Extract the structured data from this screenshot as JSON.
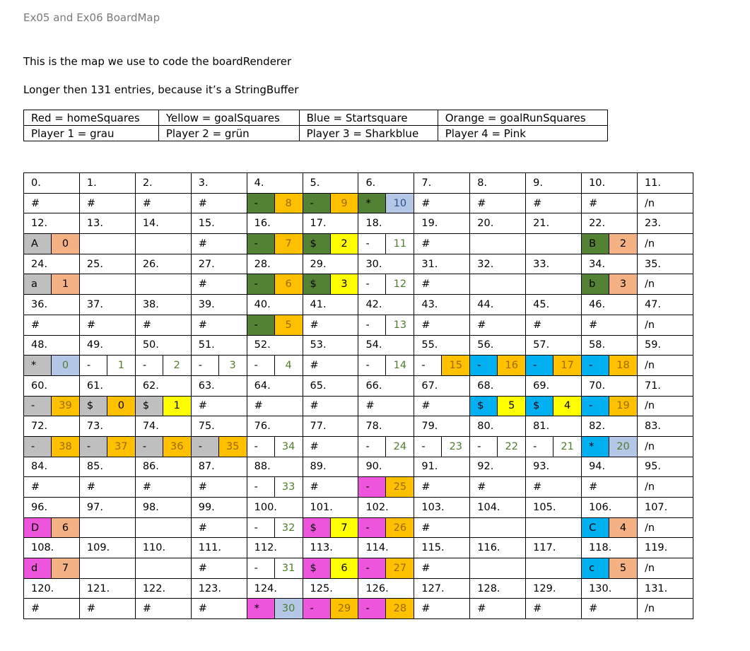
{
  "title": "Ex05 and Ex06 BoardMap",
  "intro": [
    "This is the map we use to code the boardRenderer",
    "Longer then 131 entries, because it’s a StringBuffer"
  ],
  "legend": [
    [
      "Red = homeSquares",
      "Yellow = goalSquares",
      "Blue = Startsquare",
      "Orange = goalRunSquares"
    ],
    [
      "Player 1 = grau",
      "Player 2 = grün",
      "Player 3 = Sharkblue",
      "Player 4 = Pink"
    ]
  ],
  "colors": {
    "dark_green": "#548235",
    "orange": "#ffc000",
    "yellow": "#ffff00",
    "light_blue": "#b4c7e7",
    "gray": "#bfbfbf",
    "salmon": "#f4b183",
    "sky_blue": "#00b0f0",
    "magenta": "#ee55dd"
  },
  "board": {
    "index_rows": [
      [
        "0.",
        "1.",
        "2.",
        "3.",
        "4.",
        "5.",
        "6.",
        "7.",
        "8.",
        "9.",
        "10.",
        "11."
      ],
      [
        "12.",
        "13.",
        "14.",
        "15.",
        "16.",
        "17.",
        "18.",
        "19.",
        "20.",
        "21.",
        "22.",
        "23."
      ],
      [
        "24.",
        "25.",
        "26.",
        "27.",
        "28.",
        "29.",
        "30.",
        "31.",
        "32.",
        "33.",
        "34.",
        "35."
      ],
      [
        "36.",
        "37.",
        "38.",
        "39.",
        "40.",
        "41.",
        "42.",
        "43.",
        "44.",
        "45.",
        "46.",
        "47."
      ],
      [
        "48.",
        "49.",
        "50.",
        "51.",
        "52.",
        "53.",
        "54.",
        "55.",
        "56.",
        "57.",
        "58.",
        "59."
      ],
      [
        "60.",
        "61.",
        "62.",
        "63.",
        "64.",
        "65.",
        "66.",
        "67.",
        "68.",
        "69.",
        "70.",
        "71."
      ],
      [
        "72.",
        "73.",
        "74.",
        "75.",
        "76.",
        "77.",
        "78.",
        "79.",
        "80.",
        "81.",
        "82.",
        "83."
      ],
      [
        "84.",
        "85.",
        "86.",
        "87.",
        "88.",
        "89.",
        "90.",
        "91.",
        "92.",
        "93.",
        "94.",
        "95."
      ],
      [
        "96.",
        "97.",
        "98.",
        "99.",
        "100.",
        "101.",
        "102.",
        "103.",
        "104.",
        "105.",
        "106.",
        "107."
      ],
      [
        "108.",
        "109.",
        "110.",
        "111.",
        "112.",
        "113.",
        "114.",
        "115.",
        "116.",
        "117.",
        "118.",
        "119."
      ],
      [
        "120.",
        "121.",
        "122.",
        "123.",
        "124.",
        "125.",
        "126.",
        "127.",
        "128.",
        "129.",
        "130.",
        "131."
      ]
    ],
    "content_rows": [
      [
        {
          "t": "#"
        },
        {
          "t": "#"
        },
        {
          "t": "#"
        },
        {
          "t": "#"
        },
        {
          "s": "-",
          "v": "8",
          "sb": "dark_green",
          "vb": "orange",
          "vc": "orange-t"
        },
        {
          "s": "-",
          "v": "9",
          "sb": "dark_green",
          "vb": "orange",
          "vc": "orange-t"
        },
        {
          "s": "*",
          "v": "10",
          "sb": "dark_green",
          "vb": "light_blue",
          "vc": "blue-t"
        },
        {
          "t": "#"
        },
        {
          "t": "#"
        },
        {
          "t": "#"
        },
        {
          "t": "#"
        },
        {
          "t": "/n"
        }
      ],
      [
        {
          "s": "A",
          "v": "0",
          "sb": "gray",
          "vb": "salmon"
        },
        {
          "t": ""
        },
        {
          "t": ""
        },
        {
          "t": "#"
        },
        {
          "s": "-",
          "v": "7",
          "sb": "dark_green",
          "vb": "orange",
          "vc": "orange-t"
        },
        {
          "s": "$",
          "v": "2",
          "sb": "dark_green",
          "vb": "yellow"
        },
        {
          "s": "-",
          "v": "11",
          "vc": "green-t"
        },
        {
          "t": "#"
        },
        {
          "t": ""
        },
        {
          "t": ""
        },
        {
          "s": "B",
          "v": "2",
          "sb": "dark_green",
          "vb": "salmon"
        },
        {
          "t": "/n"
        }
      ],
      [
        {
          "s": "a",
          "v": "1",
          "sb": "gray",
          "vb": "salmon"
        },
        {
          "t": ""
        },
        {
          "t": ""
        },
        {
          "t": "#"
        },
        {
          "s": "-",
          "v": "6",
          "sb": "dark_green",
          "vb": "orange",
          "vc": "orange-t"
        },
        {
          "s": "$",
          "v": "3",
          "sb": "dark_green",
          "vb": "yellow"
        },
        {
          "s": "-",
          "v": "12",
          "vc": "green-t"
        },
        {
          "t": "#"
        },
        {
          "t": ""
        },
        {
          "t": ""
        },
        {
          "s": "b",
          "v": "3",
          "sb": "dark_green",
          "vb": "salmon"
        },
        {
          "t": "/n"
        }
      ],
      [
        {
          "t": "#"
        },
        {
          "t": "#"
        },
        {
          "t": "#"
        },
        {
          "t": "#"
        },
        {
          "s": "-",
          "v": "5",
          "sb": "dark_green",
          "vb": "orange",
          "vc": "orange-t"
        },
        {
          "t": "#"
        },
        {
          "s": "-",
          "v": "13",
          "vc": "green-t"
        },
        {
          "t": "#"
        },
        {
          "t": "#"
        },
        {
          "t": "#"
        },
        {
          "t": "#"
        },
        {
          "t": "/n"
        }
      ],
      [
        {
          "s": "*",
          "v": "0",
          "sb": "gray",
          "vb": "light_blue",
          "vc": "green-t"
        },
        {
          "s": "-",
          "v": "1",
          "vc": "green-t"
        },
        {
          "s": "-",
          "v": "2",
          "vc": "green-t"
        },
        {
          "s": "-",
          "v": "3",
          "vc": "green-t"
        },
        {
          "s": "-",
          "v": "4",
          "vc": "green-t"
        },
        {
          "t": "#"
        },
        {
          "s": "-",
          "v": "14",
          "vc": "green-t"
        },
        {
          "s": "-",
          "v": "15",
          "vb": "orange",
          "vc": "orange-t"
        },
        {
          "s": "-",
          "v": "16",
          "sb": "sky_blue",
          "vb": "orange",
          "vc": "orange-t"
        },
        {
          "s": "-",
          "v": "17",
          "sb": "sky_blue",
          "vb": "orange",
          "vc": "orange-t"
        },
        {
          "s": "-",
          "v": "18",
          "sb": "sky_blue",
          "vb": "orange",
          "vc": "orange-t"
        },
        {
          "t": "/n"
        }
      ],
      [
        {
          "s": "-",
          "v": "39",
          "sb": "gray",
          "vb": "orange",
          "vc": "orange-t"
        },
        {
          "s": "$",
          "v": "0",
          "sb": "gray",
          "vb": "orange"
        },
        {
          "s": "$",
          "v": "1",
          "sb": "gray",
          "vb": "yellow"
        },
        {
          "t": "#"
        },
        {
          "t": "#"
        },
        {
          "t": "#"
        },
        {
          "t": "#"
        },
        {
          "t": "#"
        },
        {
          "s": "$",
          "v": "5",
          "sb": "sky_blue",
          "vb": "yellow"
        },
        {
          "s": "$",
          "v": "4",
          "sb": "sky_blue",
          "vb": "yellow"
        },
        {
          "s": "-",
          "v": "19",
          "sb": "sky_blue",
          "vb": "orange",
          "vc": "orange-t"
        },
        {
          "t": "/n"
        }
      ],
      [
        {
          "s": "-",
          "v": "38",
          "sb": "gray",
          "vb": "orange",
          "vc": "orange-t"
        },
        {
          "s": "-",
          "v": "37",
          "sb": "gray",
          "vb": "orange",
          "vc": "orange-t"
        },
        {
          "s": "-",
          "v": "36",
          "sb": "gray",
          "vb": "orange",
          "vc": "orange-t"
        },
        {
          "s": "-",
          "v": "35",
          "sb": "gray",
          "vb": "orange",
          "vc": "orange-t"
        },
        {
          "s": "-",
          "v": "34",
          "vc": "green-t"
        },
        {
          "t": "#"
        },
        {
          "s": "-",
          "v": "24",
          "vc": "green-t"
        },
        {
          "s": "-",
          "v": "23",
          "vc": "green-t"
        },
        {
          "s": "-",
          "v": "22",
          "vc": "green-t"
        },
        {
          "s": "-",
          "v": "21",
          "vc": "green-t"
        },
        {
          "s": "*",
          "v": "20",
          "sb": "sky_blue",
          "vb": "light_blue",
          "vc": "green-t"
        },
        {
          "t": "/n"
        }
      ],
      [
        {
          "t": "#"
        },
        {
          "t": "#"
        },
        {
          "t": "#"
        },
        {
          "t": "#"
        },
        {
          "s": "-",
          "v": "33",
          "vc": "green-t"
        },
        {
          "t": "#"
        },
        {
          "s": "-",
          "v": "25",
          "sb": "magenta",
          "vb": "orange",
          "vc": "orange-t"
        },
        {
          "t": "#"
        },
        {
          "t": "#"
        },
        {
          "t": "#"
        },
        {
          "t": "#"
        },
        {
          "t": "/n"
        }
      ],
      [
        {
          "s": "D",
          "v": "6",
          "sb": "magenta",
          "vb": "salmon"
        },
        {
          "t": ""
        },
        {
          "t": ""
        },
        {
          "t": "#"
        },
        {
          "s": "-",
          "v": "32",
          "vc": "green-t"
        },
        {
          "s": "$",
          "v": "7",
          "sb": "magenta",
          "vb": "yellow"
        },
        {
          "s": "-",
          "v": "26",
          "sb": "magenta",
          "vb": "orange",
          "vc": "orange-t"
        },
        {
          "t": "#"
        },
        {
          "t": ""
        },
        {
          "t": ""
        },
        {
          "s": "C",
          "v": "4",
          "sb": "sky_blue",
          "vb": "salmon"
        },
        {
          "t": "/n"
        }
      ],
      [
        {
          "s": "d",
          "v": "7",
          "sb": "magenta",
          "vb": "salmon"
        },
        {
          "t": ""
        },
        {
          "t": ""
        },
        {
          "t": "#"
        },
        {
          "s": "-",
          "v": "31",
          "vc": "green-t"
        },
        {
          "s": "$",
          "v": "6",
          "sb": "magenta",
          "vb": "yellow"
        },
        {
          "s": "-",
          "v": "27",
          "sb": "magenta",
          "vb": "orange",
          "vc": "orange-t"
        },
        {
          "t": "#"
        },
        {
          "t": ""
        },
        {
          "t": ""
        },
        {
          "s": "c",
          "v": "5",
          "sb": "sky_blue",
          "vb": "salmon"
        },
        {
          "t": "/n"
        }
      ],
      [
        {
          "t": "#"
        },
        {
          "t": "#"
        },
        {
          "t": "#"
        },
        {
          "t": "#"
        },
        {
          "s": "*",
          "v": "30",
          "sb": "magenta",
          "vb": "light_blue",
          "vc": "green-t"
        },
        {
          "s": "-",
          "v": "29",
          "sb": "magenta",
          "vb": "orange",
          "vc": "orange-t"
        },
        {
          "s": "-",
          "v": "28",
          "sb": "magenta",
          "vb": "orange",
          "vc": "orange-t"
        },
        {
          "t": "#"
        },
        {
          "t": "#"
        },
        {
          "t": "#"
        },
        {
          "t": "#"
        },
        {
          "t": "/n"
        }
      ]
    ]
  }
}
